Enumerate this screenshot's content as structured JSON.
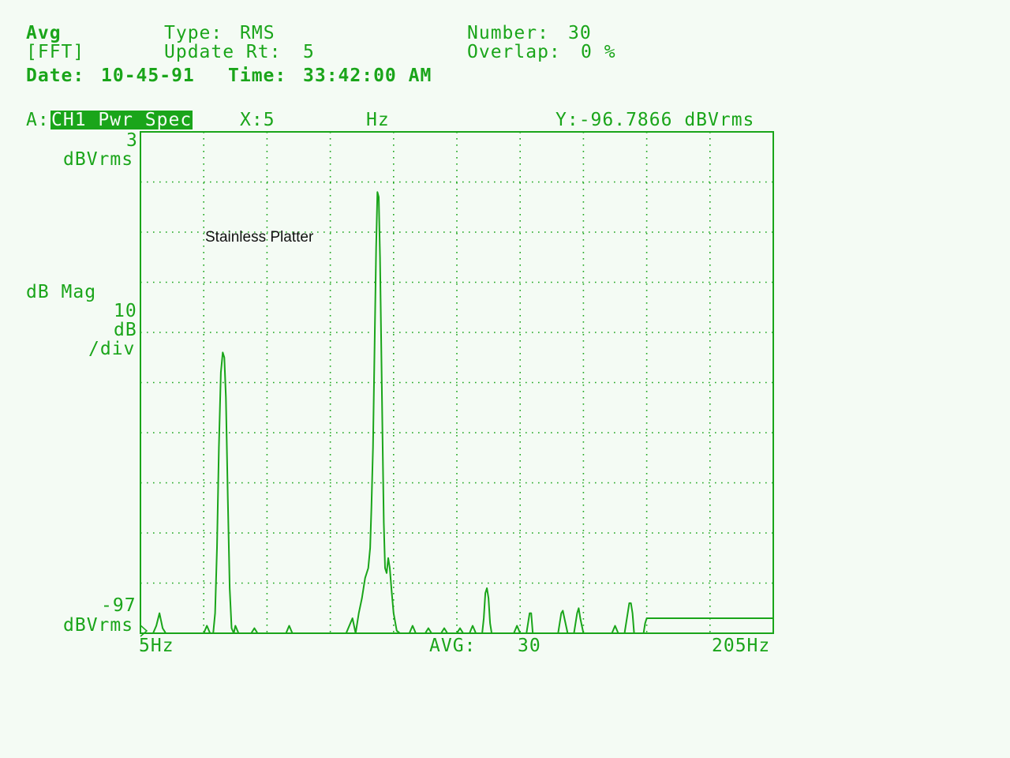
{
  "header": {
    "mode": "Avg",
    "mode2": "[FFT]",
    "type_label": "Type:",
    "type_value": "RMS",
    "update_label": "Update Rt:",
    "update_value": "5",
    "number_label": "Number:",
    "number_value": "30",
    "overlap_label": "Overlap:",
    "overlap_value": "0 %",
    "date_label": "Date:",
    "date_value": "10-45-91",
    "time_label": "Time:",
    "time_value": "33:42:00 AM"
  },
  "trace": {
    "channel_prefix": "A:",
    "channel_name": "CH1 Pwr Spec",
    "x_label": "X:5",
    "x_unit": "Hz",
    "y_readout": "Y:-96.7866 dBVrms"
  },
  "y_axis": {
    "top_value": "3",
    "top_unit": "dBVrms",
    "scale_name": "dB Mag",
    "scale_value": "10",
    "scale_unit": "dB",
    "scale_per": "/div",
    "bottom_value": "-97",
    "bottom_unit": "dBVrms"
  },
  "x_axis": {
    "start": "5Hz",
    "avg_label": "AVG:",
    "avg_value": "30",
    "end": "205Hz"
  },
  "annotation": "Stainless Platter",
  "colors": {
    "trace": "#1aa51a",
    "background": "#f4fbf4",
    "annotation": "#111111"
  },
  "chart_data": {
    "type": "line",
    "title": "",
    "xlabel": "",
    "ylabel": "dB Mag",
    "xlim": [
      5,
      205
    ],
    "ylim": [
      -97,
      3
    ],
    "grid": true,
    "x_divisions": 10,
    "y_divisions": 10,
    "series": [
      {
        "points": [
          [
            5,
            -97
          ],
          [
            9,
            -97
          ],
          [
            10,
            -95.5
          ],
          [
            11,
            -93
          ],
          [
            12,
            -96
          ],
          [
            13,
            -97
          ],
          [
            24,
            -97
          ],
          [
            25,
            -97
          ],
          [
            26,
            -95.5
          ],
          [
            27,
            -97
          ],
          [
            28,
            -97
          ],
          [
            28.6,
            -93
          ],
          [
            29.2,
            -80
          ],
          [
            29.8,
            -60
          ],
          [
            30.4,
            -45
          ],
          [
            31.0,
            -41
          ],
          [
            31.5,
            -42
          ],
          [
            32.0,
            -50
          ],
          [
            32.6,
            -70
          ],
          [
            33.2,
            -88
          ],
          [
            33.8,
            -96
          ],
          [
            34.5,
            -97
          ],
          [
            35,
            -95.5
          ],
          [
            36,
            -97
          ],
          [
            40,
            -97
          ],
          [
            41,
            -96
          ],
          [
            42,
            -97
          ],
          [
            51,
            -97
          ],
          [
            52,
            -95.5
          ],
          [
            53,
            -97
          ],
          [
            70,
            -97
          ],
          [
            71,
            -95.5
          ],
          [
            72,
            -94
          ],
          [
            73,
            -97
          ],
          [
            74,
            -93
          ],
          [
            75,
            -90
          ],
          [
            76,
            -86
          ],
          [
            77,
            -84
          ],
          [
            77.6,
            -80
          ],
          [
            78.0,
            -72
          ],
          [
            78.5,
            -60
          ],
          [
            79.0,
            -40
          ],
          [
            79.5,
            -20
          ],
          [
            79.9,
            -9
          ],
          [
            80.3,
            -10
          ],
          [
            80.7,
            -22
          ],
          [
            81.1,
            -40
          ],
          [
            81.5,
            -58
          ],
          [
            81.9,
            -75
          ],
          [
            82.3,
            -84
          ],
          [
            82.8,
            -85
          ],
          [
            83.3,
            -82
          ],
          [
            83.8,
            -84
          ],
          [
            84.3,
            -88
          ],
          [
            85,
            -93
          ],
          [
            86,
            -96.5
          ],
          [
            87,
            -97
          ],
          [
            90,
            -97
          ],
          [
            91,
            -95.5
          ],
          [
            92,
            -97
          ],
          [
            95,
            -97
          ],
          [
            96,
            -96
          ],
          [
            97,
            -97
          ],
          [
            100,
            -97
          ],
          [
            101,
            -96
          ],
          [
            102,
            -97
          ],
          [
            105,
            -97
          ],
          [
            106,
            -96
          ],
          [
            107,
            -97
          ],
          [
            109,
            -97
          ],
          [
            110,
            -95.5
          ],
          [
            111,
            -97
          ],
          [
            113,
            -97
          ],
          [
            113.5,
            -94
          ],
          [
            114,
            -89
          ],
          [
            114.5,
            -88
          ],
          [
            115,
            -90
          ],
          [
            115.5,
            -95
          ],
          [
            116,
            -97
          ],
          [
            123,
            -97
          ],
          [
            124,
            -95.5
          ],
          [
            125,
            -97
          ],
          [
            127,
            -97
          ],
          [
            128,
            -93
          ],
          [
            128.5,
            -93
          ],
          [
            129,
            -97
          ],
          [
            137,
            -97
          ],
          [
            138,
            -93
          ],
          [
            138.5,
            -92.5
          ],
          [
            139,
            -94
          ],
          [
            140,
            -97
          ],
          [
            142,
            -97
          ],
          [
            143,
            -93
          ],
          [
            143.5,
            -92
          ],
          [
            144,
            -94
          ],
          [
            145,
            -97
          ],
          [
            154,
            -97
          ],
          [
            155,
            -95.5
          ],
          [
            156,
            -97
          ],
          [
            158,
            -97
          ],
          [
            159,
            -93
          ],
          [
            159.5,
            -91
          ],
          [
            160,
            -91
          ],
          [
            160.5,
            -93
          ],
          [
            161,
            -97
          ],
          [
            164,
            -97
          ],
          [
            164.5,
            -95
          ],
          [
            165,
            -94
          ],
          [
            205,
            -94
          ]
        ]
      }
    ]
  }
}
